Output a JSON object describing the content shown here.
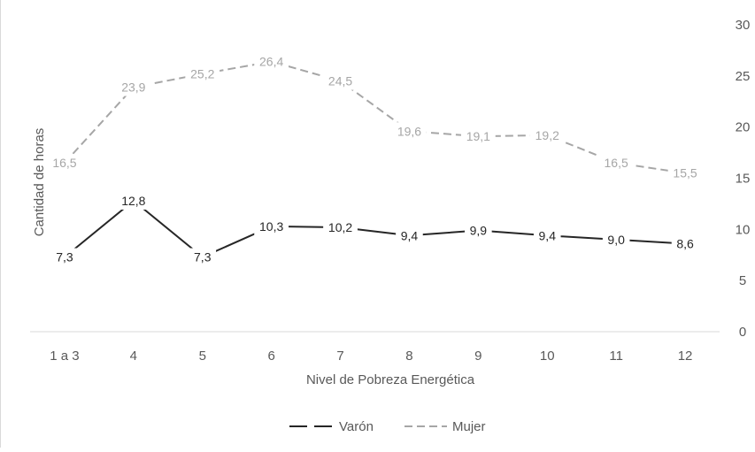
{
  "chart_data": {
    "type": "line",
    "title": "",
    "xlabel": "Nivel de Pobreza Energética",
    "ylabel": "Cantidad de horas",
    "categories": [
      "1 a 3",
      "4",
      "5",
      "6",
      "7",
      "8",
      "9",
      "10",
      "11",
      "12"
    ],
    "ylim": [
      0,
      30
    ],
    "yticks": [
      0,
      5,
      10,
      15,
      20,
      25,
      30
    ],
    "y_axis_side": "right",
    "grid": false,
    "legend_position": "bottom",
    "series": [
      {
        "name": "Varón",
        "values": [
          7.3,
          12.8,
          7.3,
          10.3,
          10.2,
          9.4,
          9.9,
          9.4,
          9.0,
          8.6
        ],
        "labels": [
          "7,3",
          "12,8",
          "7,3",
          "10,3",
          "10,2",
          "9,4",
          "9,9",
          "9,4",
          "9,0",
          "8,6"
        ],
        "color": "#262626",
        "style": "solid"
      },
      {
        "name": "Mujer",
        "values": [
          16.5,
          23.9,
          25.2,
          26.4,
          24.5,
          19.6,
          19.1,
          19.2,
          16.5,
          15.5
        ],
        "labels": [
          "16,5",
          "23,9",
          "25,2",
          "26,4",
          "24,5",
          "19,6",
          "19,1",
          "19,2",
          "16,5",
          "15,5"
        ],
        "color": "#a6a6a6",
        "style": "dashed"
      }
    ]
  }
}
